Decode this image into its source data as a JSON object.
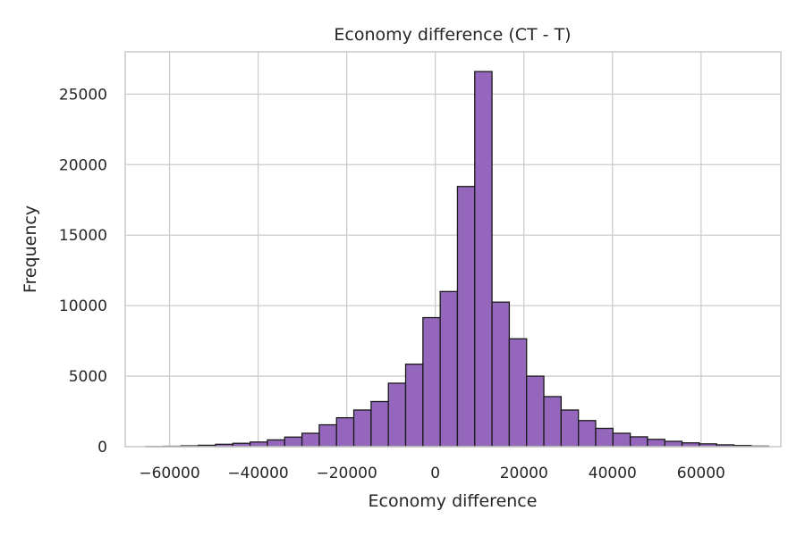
{
  "chart_data": {
    "type": "bar",
    "title": "Economy difference (CT - T)",
    "xlabel": "Economy difference",
    "ylabel": "Frequency",
    "xlim": [
      -70000,
      78000
    ],
    "ylim": [
      0,
      28000
    ],
    "xticks": [
      -60000,
      -40000,
      -20000,
      0,
      20000,
      40000,
      60000
    ],
    "xtick_labels": [
      "−60000",
      "−40000",
      "−20000",
      "0",
      "20000",
      "40000",
      "60000"
    ],
    "yticks": [
      0,
      5000,
      10000,
      15000,
      20000,
      25000
    ],
    "ytick_labels": [
      "0",
      "5000",
      "10000",
      "15000",
      "20000",
      "25000"
    ],
    "grid": true,
    "bar_color": "#9467bd",
    "edge_color": "#1a1a1a",
    "bin_width": 3900,
    "bins": [
      {
        "x0": -65200,
        "count": 15
      },
      {
        "x0": -61300,
        "count": 30
      },
      {
        "x0": -57400,
        "count": 60
      },
      {
        "x0": -53500,
        "count": 100
      },
      {
        "x0": -49600,
        "count": 170
      },
      {
        "x0": -45700,
        "count": 240
      },
      {
        "x0": -41800,
        "count": 330
      },
      {
        "x0": -37900,
        "count": 480
      },
      {
        "x0": -34000,
        "count": 680
      },
      {
        "x0": -30100,
        "count": 950
      },
      {
        "x0": -26200,
        "count": 1550
      },
      {
        "x0": -22300,
        "count": 2050
      },
      {
        "x0": -18400,
        "count": 2600
      },
      {
        "x0": -14500,
        "count": 3200
      },
      {
        "x0": -10600,
        "count": 4500
      },
      {
        "x0": -6700,
        "count": 5850
      },
      {
        "x0": -2800,
        "count": 9150
      },
      {
        "x0": 1100,
        "count": 11000
      },
      {
        "x0": 5000,
        "count": 18450
      },
      {
        "x0": 8900,
        "count": 26600
      },
      {
        "x0": 12800,
        "count": 10250
      },
      {
        "x0": 16700,
        "count": 7650
      },
      {
        "x0": 20600,
        "count": 5000
      },
      {
        "x0": 24500,
        "count": 3550
      },
      {
        "x0": 28400,
        "count": 2600
      },
      {
        "x0": 32300,
        "count": 1850
      },
      {
        "x0": 36200,
        "count": 1300
      },
      {
        "x0": 40100,
        "count": 950
      },
      {
        "x0": 44000,
        "count": 700
      },
      {
        "x0": 47900,
        "count": 520
      },
      {
        "x0": 51800,
        "count": 380
      },
      {
        "x0": 55700,
        "count": 270
      },
      {
        "x0": 59600,
        "count": 200
      },
      {
        "x0": 63500,
        "count": 130
      },
      {
        "x0": 67400,
        "count": 80
      },
      {
        "x0": 71300,
        "count": 40
      }
    ]
  }
}
